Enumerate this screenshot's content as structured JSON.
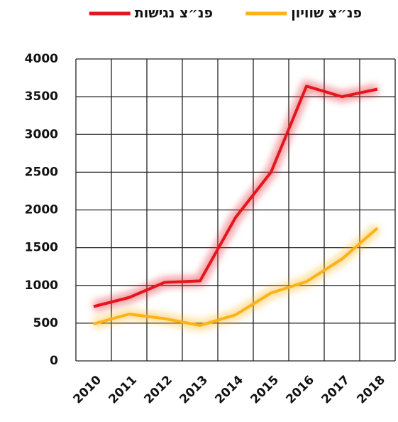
{
  "chart_data": {
    "type": "line",
    "categories": [
      "2010",
      "2011",
      "2012",
      "2013",
      "2014",
      "2015",
      "2016",
      "2017",
      "2018"
    ],
    "series": [
      {
        "name": "פנ״צ נגישות",
        "color": "#e3161f",
        "values": [
          720,
          840,
          1040,
          1060,
          1900,
          2500,
          3640,
          3500,
          3600
        ]
      },
      {
        "name": "פנ״צ שוויון",
        "color": "#fbb317",
        "values": [
          490,
          620,
          560,
          470,
          610,
          900,
          1050,
          1350,
          1760
        ]
      }
    ],
    "ylim": [
      0,
      4000
    ],
    "yticks": [
      0,
      500,
      1000,
      1500,
      2000,
      2500,
      3000,
      3500,
      4000
    ],
    "grid": true,
    "legend": "top"
  }
}
